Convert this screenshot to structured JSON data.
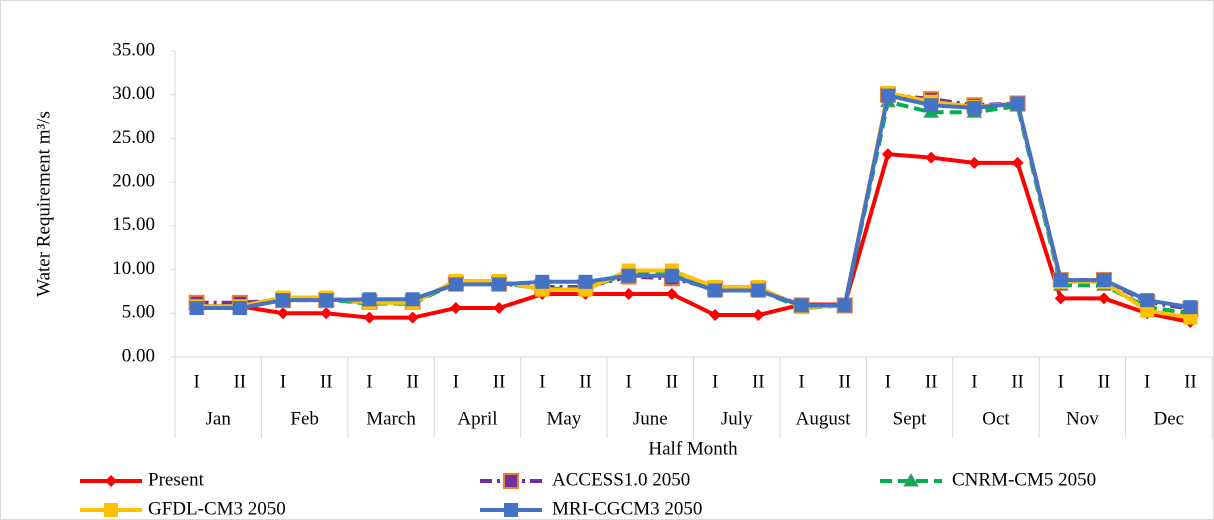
{
  "chart_data": {
    "type": "line",
    "y_label": "Water Requirement m³/s",
    "x_label": "Half Month",
    "categories": [
      "I",
      "II",
      "I",
      "II",
      "I",
      "II",
      "I",
      "II",
      "I",
      "II",
      "I",
      "II",
      "I",
      "II",
      "I",
      "II",
      "I",
      "II",
      "I",
      "II",
      "I",
      "II",
      "I",
      "II"
    ],
    "months": [
      "Jan",
      "Feb",
      "March",
      "April",
      "May",
      "June",
      "July",
      "August",
      "Sept",
      "Oct",
      "Nov",
      "Dec"
    ],
    "ylim": [
      0,
      35
    ],
    "yticks": [
      {
        "value": 0,
        "label": "0.00"
      },
      {
        "value": 5,
        "label": "5.00"
      },
      {
        "value": 10,
        "label": "10.00"
      },
      {
        "value": 15,
        "label": "15.00"
      },
      {
        "value": 20,
        "label": "20.00"
      },
      {
        "value": 25,
        "label": "25.00"
      },
      {
        "value": 30,
        "label": "30.00"
      },
      {
        "value": 35,
        "label": "35.00"
      }
    ],
    "series": [
      {
        "name": "Present",
        "color": "#ff0000",
        "marker": "diamond",
        "dash": "solid",
        "values": [
          5.8,
          5.8,
          5.0,
          5.0,
          4.5,
          4.5,
          5.6,
          5.6,
          7.2,
          7.2,
          7.2,
          7.2,
          4.8,
          4.8,
          6.0,
          6.0,
          23.2,
          22.8,
          22.2,
          22.2,
          6.7,
          6.7,
          5.0,
          4.0
        ]
      },
      {
        "name": "ACCESS1.0  2050",
        "color": "#7030a0",
        "marker": "star-square",
        "dash": "dashdot",
        "values": [
          6.2,
          6.2,
          6.5,
          6.5,
          6.3,
          6.3,
          8.4,
          8.4,
          8.0,
          8.0,
          9.2,
          9.0,
          7.8,
          7.8,
          5.9,
          5.9,
          30.0,
          29.5,
          28.8,
          29.0,
          8.8,
          8.8,
          6.3,
          5.5
        ]
      },
      {
        "name": "CNRM-CM5 2050",
        "color": "#00b050",
        "marker": "triangle",
        "dash": "dash",
        "values": [
          5.6,
          5.6,
          6.6,
          6.6,
          6.1,
          6.1,
          8.5,
          8.5,
          7.8,
          7.8,
          9.6,
          9.8,
          7.7,
          7.7,
          5.6,
          5.9,
          29.2,
          28.0,
          28.0,
          28.7,
          8.2,
          8.2,
          5.7,
          5.0
        ]
      },
      {
        "name": "GFDL-CM3 2050",
        "color": "#ffc000",
        "marker": "square",
        "dash": "solid",
        "values": [
          5.8,
          5.8,
          6.8,
          6.8,
          6.2,
          6.2,
          8.7,
          8.7,
          7.7,
          7.7,
          9.9,
          9.9,
          8.0,
          8.0,
          5.7,
          5.9,
          30.2,
          29.2,
          28.6,
          29.0,
          8.6,
          8.6,
          5.3,
          4.5
        ]
      },
      {
        "name": "MRI-CGCM3 2050",
        "color": "#4472c4",
        "marker": "square",
        "dash": "solid",
        "values": [
          5.6,
          5.6,
          6.5,
          6.5,
          6.6,
          6.6,
          8.3,
          8.3,
          8.6,
          8.6,
          9.3,
          9.3,
          7.6,
          7.6,
          5.9,
          5.9,
          29.9,
          28.8,
          28.5,
          29.0,
          8.8,
          8.8,
          6.5,
          5.7
        ]
      }
    ]
  }
}
